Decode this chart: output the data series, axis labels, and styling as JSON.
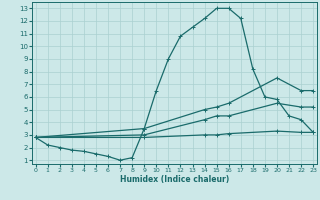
{
  "xlabel": "Humidex (Indice chaleur)",
  "bg_color": "#cce8e8",
  "line_color": "#1a6b6b",
  "xlim": [
    -0.3,
    23.3
  ],
  "ylim": [
    0.7,
    13.5
  ],
  "xticks": [
    0,
    1,
    2,
    3,
    4,
    5,
    6,
    7,
    8,
    9,
    10,
    11,
    12,
    13,
    14,
    15,
    16,
    17,
    18,
    19,
    20,
    21,
    22,
    23
  ],
  "yticks": [
    1,
    2,
    3,
    4,
    5,
    6,
    7,
    8,
    9,
    10,
    11,
    12,
    13
  ],
  "grid_color": "#aad0d0",
  "line1_x": [
    0,
    1,
    2,
    3,
    4,
    5,
    6,
    7,
    8,
    9,
    10,
    11,
    12,
    13,
    14,
    15,
    16,
    17,
    18,
    19,
    20,
    21,
    22,
    23
  ],
  "line1_y": [
    2.8,
    2.2,
    2.0,
    1.8,
    1.7,
    1.5,
    1.3,
    1.0,
    1.2,
    3.5,
    6.5,
    9.0,
    10.8,
    11.5,
    12.2,
    13.0,
    13.0,
    12.2,
    8.2,
    6.0,
    5.8,
    4.5,
    4.2,
    3.2
  ],
  "line2_x": [
    0,
    9,
    14,
    15,
    16,
    20,
    22,
    23
  ],
  "line2_y": [
    2.8,
    3.5,
    5.0,
    5.2,
    5.5,
    7.5,
    6.5,
    6.5
  ],
  "line3_x": [
    0,
    9,
    14,
    15,
    16,
    20,
    22,
    23
  ],
  "line3_y": [
    2.8,
    3.0,
    4.2,
    4.5,
    4.5,
    5.5,
    5.2,
    5.2
  ],
  "line4_x": [
    0,
    9,
    14,
    15,
    16,
    20,
    22,
    23
  ],
  "line4_y": [
    2.8,
    2.8,
    3.0,
    3.0,
    3.1,
    3.3,
    3.2,
    3.2
  ]
}
